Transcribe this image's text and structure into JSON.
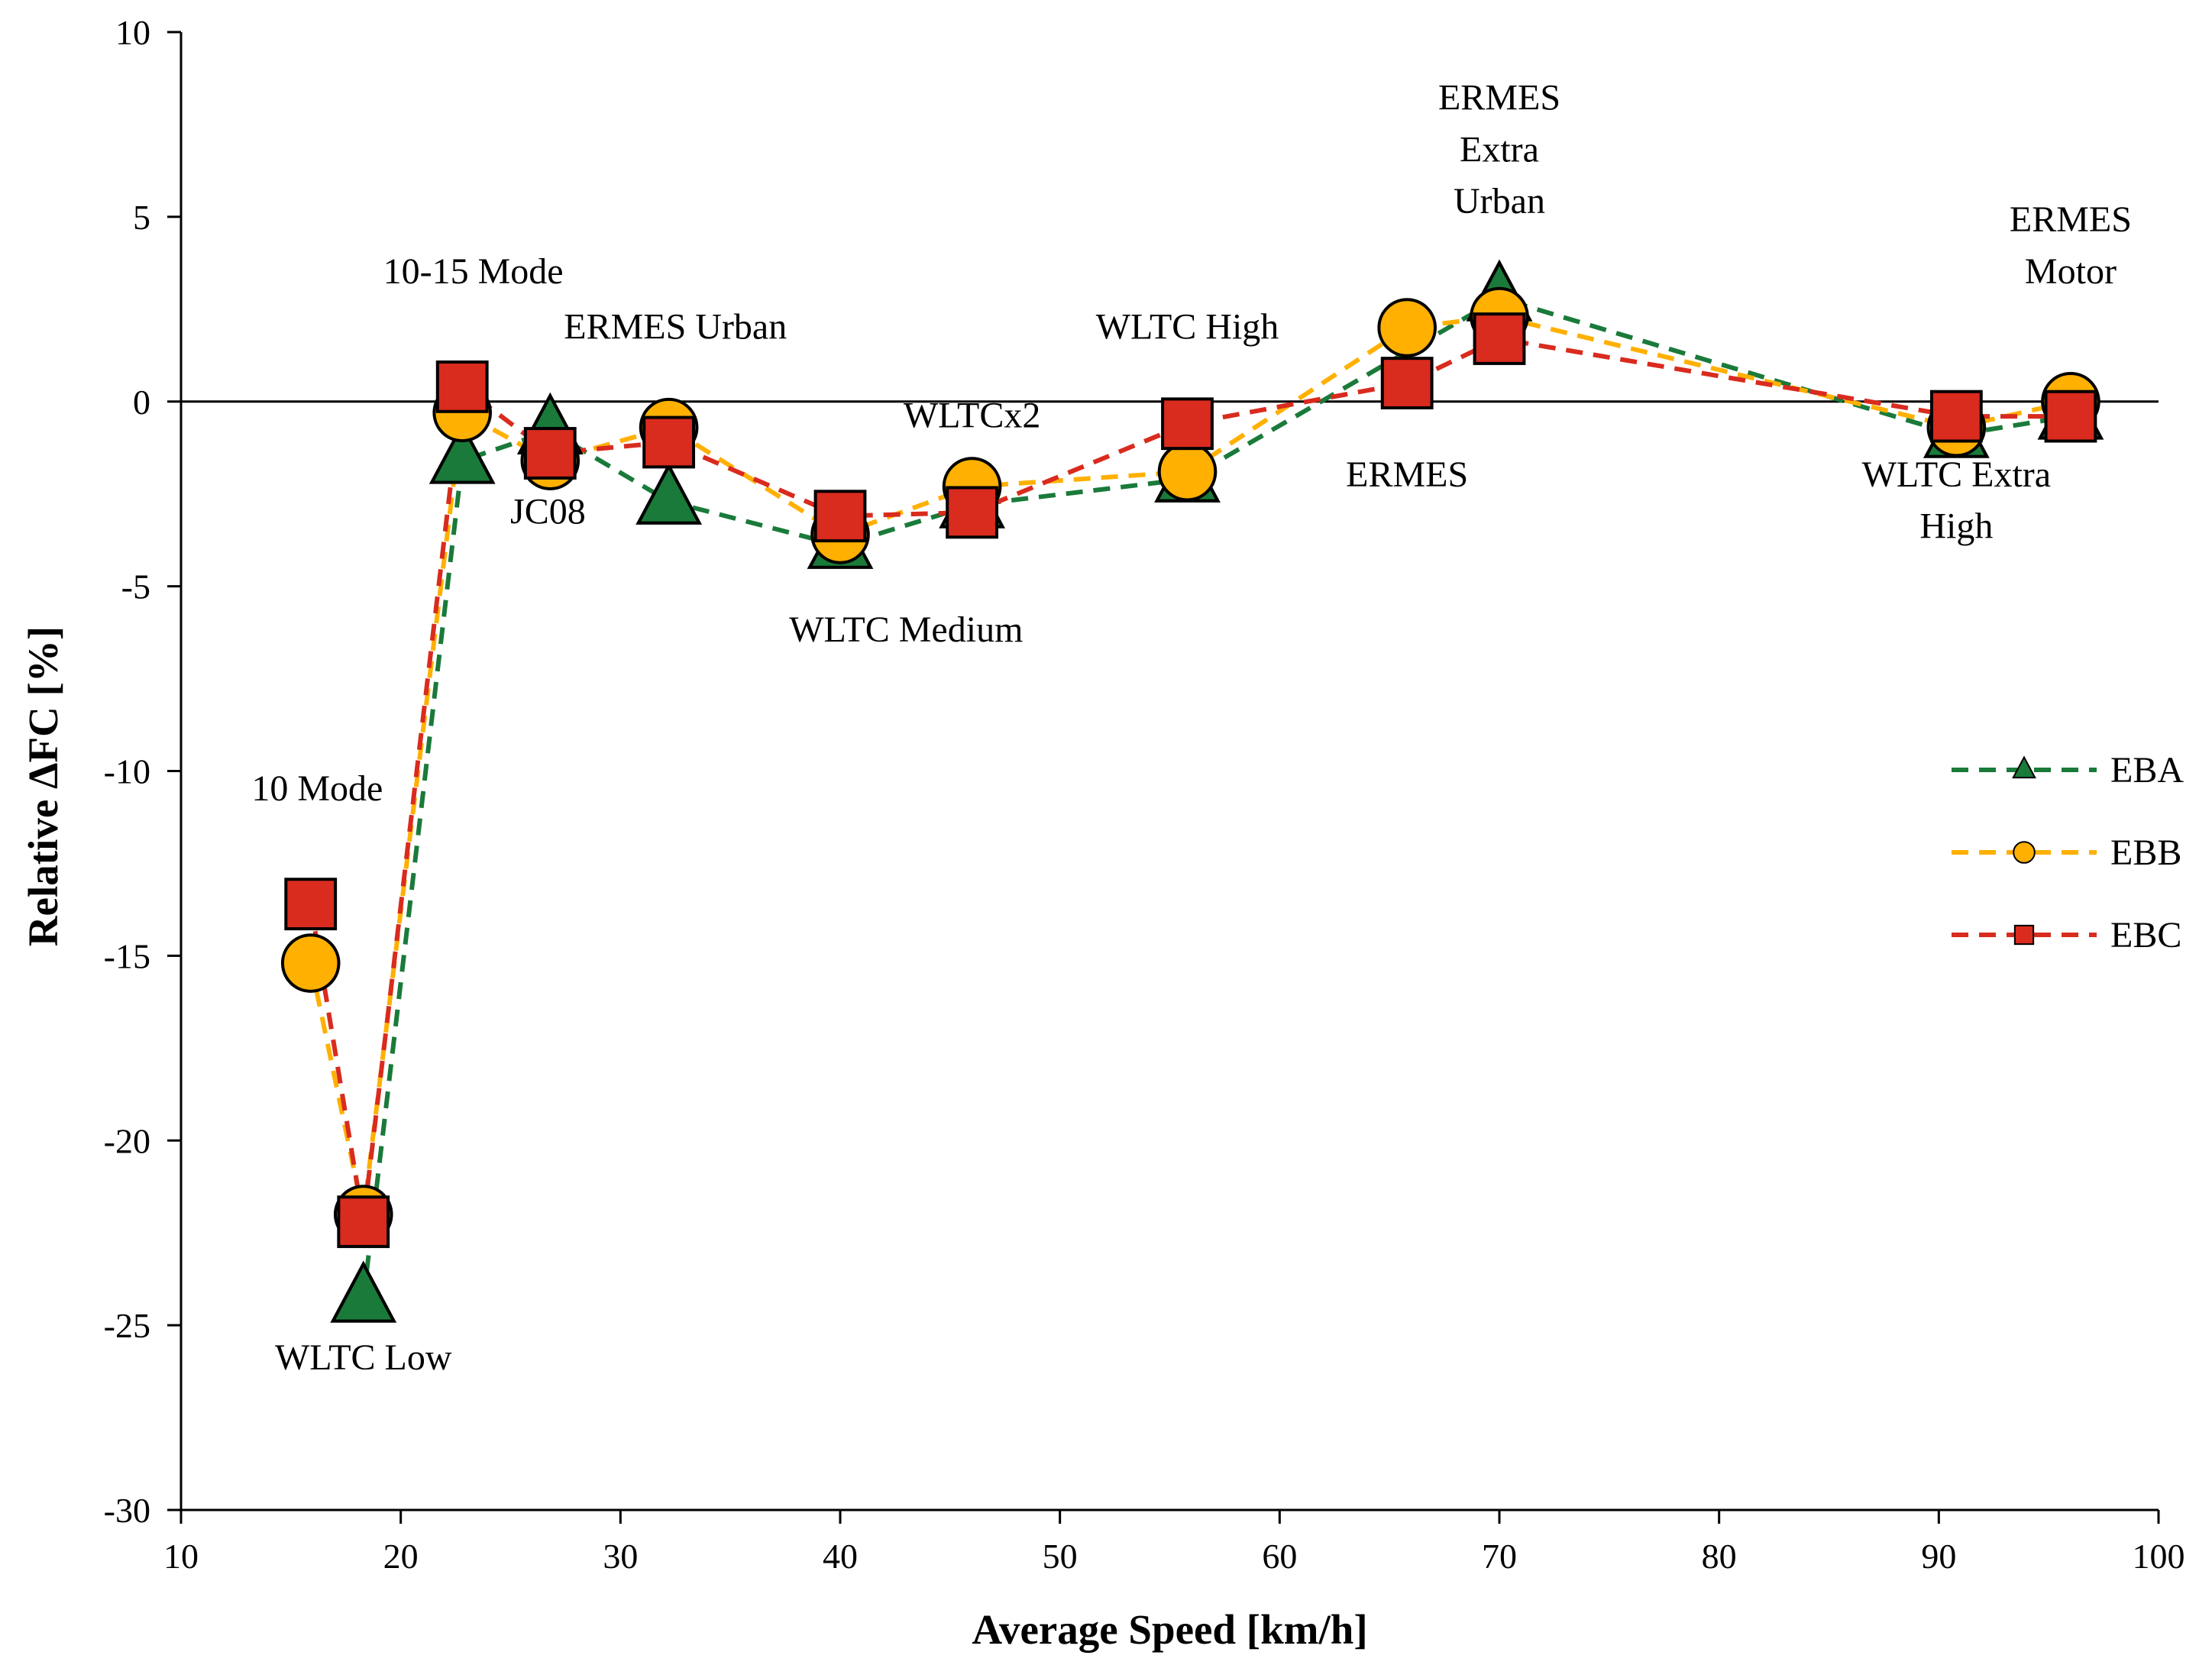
{
  "chart_data": {
    "type": "line",
    "xlabel": "Average Speed [km/h]",
    "ylabel": "Relative ΔFC [%]",
    "xlim": [
      10,
      100
    ],
    "ylim": [
      -30,
      10
    ],
    "xticks": [
      10,
      20,
      30,
      40,
      50,
      60,
      70,
      80,
      90,
      100
    ],
    "yticks": [
      10,
      5,
      0,
      -5,
      -10,
      -15,
      -20,
      -25,
      -30
    ],
    "grid": false,
    "legend": "right",
    "series": [
      {
        "name": "EBA",
        "marker": "triangle",
        "color": "#1a7a3a",
        "x": [
          18.3,
          22.8,
          26.8,
          32.2,
          40.0,
          46.0,
          55.8,
          70.0,
          90.8,
          96.0
        ],
        "y": [
          -24.3,
          -1.6,
          -0.8,
          -2.7,
          -3.9,
          -2.8,
          -2.1,
          2.8,
          -0.9,
          -0.4
        ]
      },
      {
        "name": "EBB",
        "marker": "circle",
        "color": "#ffb000",
        "x": [
          15.9,
          18.3,
          22.8,
          26.8,
          32.2,
          40.0,
          46.0,
          55.8,
          65.8,
          70.0,
          90.8,
          96.0
        ],
        "y": [
          -15.2,
          -22.0,
          -0.3,
          -1.6,
          -0.7,
          -3.6,
          -2.3,
          -1.9,
          2.0,
          2.3,
          -0.7,
          0.0
        ]
      },
      {
        "name": "EBC",
        "marker": "square",
        "color": "#d92b1e",
        "x": [
          15.9,
          18.3,
          22.8,
          26.8,
          32.2,
          40.0,
          46.0,
          55.8,
          65.8,
          70.0,
          90.8,
          96.0
        ],
        "y": [
          -13.6,
          -22.2,
          0.4,
          -1.4,
          -1.1,
          -3.1,
          -3.0,
          -0.6,
          0.5,
          1.7,
          -0.4,
          -0.4
        ]
      }
    ],
    "annotations": [
      {
        "text": "10 Mode",
        "x": 16.2,
        "y": -10.8
      },
      {
        "text": "WLTC Low",
        "x": 18.3,
        "y": -26.2
      },
      {
        "text": "10-15 Mode",
        "x": 23.3,
        "y": 3.2
      },
      {
        "text": "ERMES Urban",
        "x": 32.5,
        "y": 1.7
      },
      {
        "text": "JC08",
        "x": 26.7,
        "y": -3.3
      },
      {
        "text": "WLTC Medium",
        "x": 43.0,
        "y": -6.5
      },
      {
        "text": "WLTCx2",
        "x": 46.0,
        "y": -0.7
      },
      {
        "text": "WLTC High",
        "x": 55.8,
        "y": 1.7
      },
      {
        "text": "ERMES",
        "x": 65.8,
        "y": -2.3
      },
      {
        "text": "ERMES",
        "x": 70.0,
        "y": 7.9
      },
      {
        "text": "Extra",
        "x": 70.0,
        "y": 6.5
      },
      {
        "text": "Urban",
        "x": 70.0,
        "y": 5.1
      },
      {
        "text": "ERMES",
        "x": 96.0,
        "y": 4.6
      },
      {
        "text": "Motor",
        "x": 96.0,
        "y": 3.2
      },
      {
        "text": "WLTC Extra",
        "x": 90.8,
        "y": -2.3
      },
      {
        "text": "High",
        "x": 90.8,
        "y": -3.7
      }
    ]
  }
}
